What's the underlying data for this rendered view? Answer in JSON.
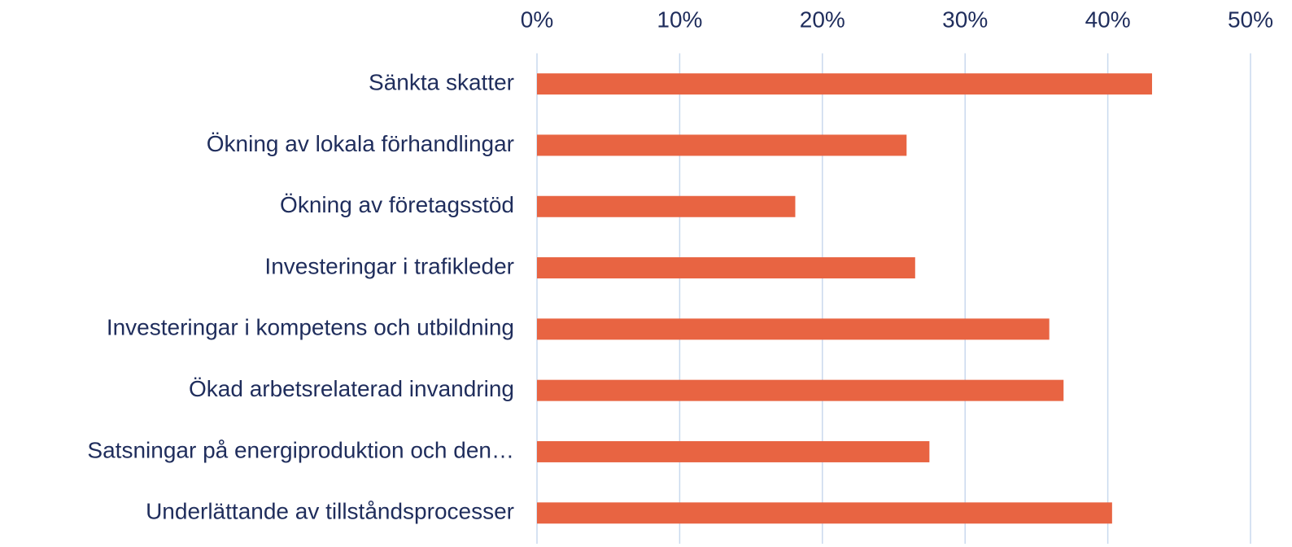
{
  "chart_data": {
    "type": "bar",
    "orientation": "horizontal",
    "categories": [
      "Sänkta skatter",
      "Ökning av lokala förhandlingar",
      "Ökning av företagsstöd",
      "Investeringar i trafikleder",
      "Investeringar i kompetens och utbildning",
      "Ökad arbetsrelaterad invandring",
      "Satsningar på energiproduktion och den…",
      "Underlättande av tillståndsprocesser"
    ],
    "values": [
      43.1,
      25.9,
      18.1,
      26.5,
      35.9,
      36.9,
      27.5,
      40.3
    ],
    "color": "#e86442",
    "xlim": [
      0,
      50
    ],
    "xticks": [
      {
        "value": 0,
        "label": "0%"
      },
      {
        "value": 10,
        "label": "10%"
      },
      {
        "value": 20,
        "label": "20%"
      },
      {
        "value": 30,
        "label": "30%"
      },
      {
        "value": 40,
        "label": "40%"
      },
      {
        "value": 50,
        "label": "50%"
      }
    ],
    "grid": true
  }
}
